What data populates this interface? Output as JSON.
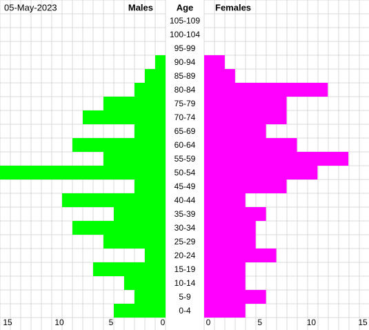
{
  "chart_data": {
    "type": "pyramid",
    "title": "05-May-2023",
    "category_label": "Age",
    "categories": [
      "105-109",
      "100-104",
      "95-99",
      "90-94",
      "85-89",
      "80-84",
      "75-79",
      "70-74",
      "65-69",
      "60-64",
      "55-59",
      "50-54",
      "45-49",
      "40-44",
      "35-39",
      "30-34",
      "25-29",
      "20-24",
      "15-19",
      "10-14",
      "5-9",
      "0-4"
    ],
    "series": [
      {
        "name": "Males",
        "color": "#00ff00",
        "values": [
          0,
          0,
          0,
          1,
          2,
          3,
          6,
          8,
          3,
          9,
          6,
          16,
          3,
          10,
          5,
          9,
          6,
          2,
          7,
          4,
          3,
          5
        ],
        "xlim": [
          0,
          16
        ],
        "xticks": [
          15,
          10,
          5,
          0
        ]
      },
      {
        "name": "Females",
        "color": "#ff00ff",
        "values": [
          0,
          0,
          0,
          2,
          3,
          12,
          8,
          8,
          6,
          9,
          14,
          11,
          8,
          4,
          6,
          5,
          5,
          7,
          4,
          4,
          6,
          4
        ],
        "xlim": [
          0,
          16
        ],
        "xticks": [
          0,
          5,
          10,
          15
        ]
      }
    ],
    "grid": true
  }
}
